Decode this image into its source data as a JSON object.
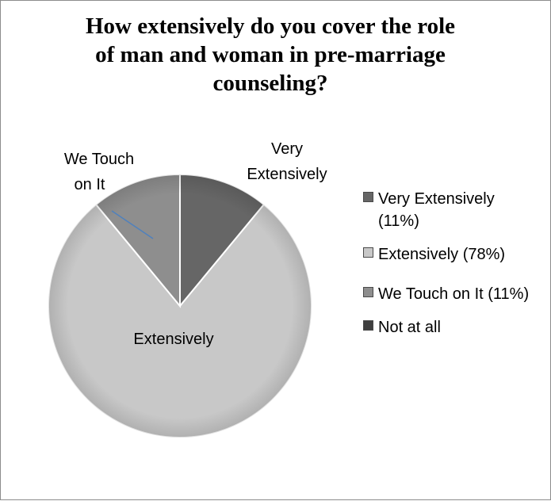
{
  "chart_data": {
    "type": "pie",
    "title_lines": [
      "How extensively do you cover the role",
      "of man and woman in pre-marriage",
      "counseling?"
    ],
    "slices": [
      {
        "name": "Very Extensively",
        "value": 11,
        "color": "#666666",
        "label_lines": [
          "Very",
          "Extensively"
        ],
        "legend": "Very Extensively (11%)"
      },
      {
        "name": "Extensively",
        "value": 78,
        "color": "#c8c8c8",
        "label_lines": [
          "Extensively"
        ],
        "legend": "Extensively (78%)"
      },
      {
        "name": "We Touch on It",
        "value": 11,
        "color": "#8e8e8e",
        "label_lines": [
          "We Touch",
          "on It"
        ],
        "legend": "We Touch on It (11%)"
      },
      {
        "name": "Not at all",
        "value": 0,
        "color": "#3f3f3f",
        "label_lines": [],
        "legend": "Not at all"
      }
    ],
    "start_angle_deg": 0,
    "legend_position": "right",
    "leader_line_color": "#4f81bd"
  }
}
